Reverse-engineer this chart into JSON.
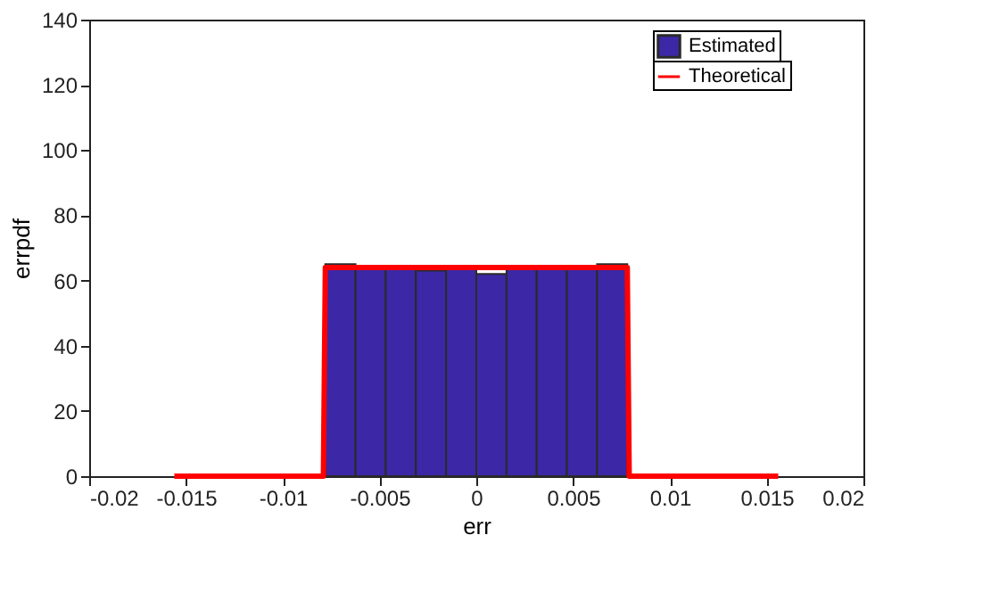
{
  "chart_data": {
    "type": "histogram",
    "xlabel": "err",
    "ylabel": "errpdf",
    "bins": [
      -0.0078,
      -0.00624,
      -0.00468,
      -0.00312,
      -0.00156,
      0,
      0.00156,
      0.00312,
      0.00468,
      0.00624,
      0.0078
    ],
    "series": [
      {
        "name": "Estimated",
        "type": "histogram",
        "color": "#3c27a6",
        "values": [
          65,
          63.5,
          63.5,
          63,
          63.5,
          62,
          63.5,
          63.5,
          64,
          65
        ]
      },
      {
        "name": "Theoretical",
        "type": "line",
        "color": "#ff0000",
        "x": [
          -0.0156,
          -0.0079,
          -0.0078,
          0.0078,
          0.0079,
          0.0156
        ],
        "values": [
          0,
          0,
          64,
          64,
          0,
          0
        ]
      }
    ],
    "xlim": [
      -0.02,
      0.02
    ],
    "xticks": [
      -0.02,
      -0.015,
      -0.01,
      -0.005,
      0,
      0.005,
      0.01,
      0.015,
      0.02
    ],
    "ylim": [
      0,
      140
    ],
    "yticks": [
      0,
      20,
      40,
      60,
      80,
      100,
      120,
      140
    ],
    "grid": false,
    "legend": "top right"
  }
}
